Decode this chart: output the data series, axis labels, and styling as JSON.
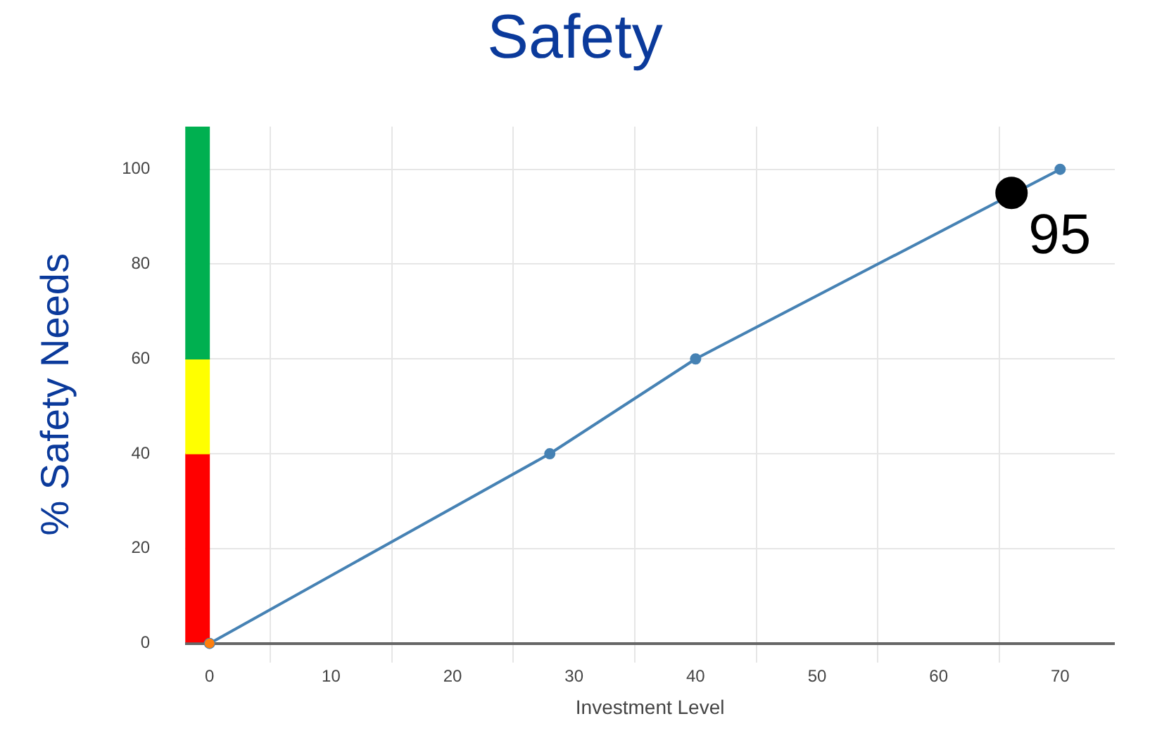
{
  "chart_data": {
    "type": "line",
    "title": "Safety",
    "xlabel": "Investment Level",
    "ylabel": "% Safety Needs",
    "xlim": [
      -2,
      74.5
    ],
    "xticks": [
      0,
      10,
      20,
      30,
      40,
      50,
      60,
      70
    ],
    "ylim": [
      -4,
      109
    ],
    "yticks": [
      0,
      20,
      40,
      60,
      80,
      100
    ],
    "grid": true,
    "legend": false,
    "marker": "circle",
    "series": [
      {
        "type": "bar",
        "color": "#ff0000",
        "x": [
          -1
        ],
        "base": [
          0
        ],
        "values": [
          40
        ]
      },
      {
        "type": "bar",
        "color": "#ffff00",
        "x": [
          -1
        ],
        "base": [
          40
        ],
        "values": [
          20
        ]
      },
      {
        "type": "bar",
        "color": "#00b050",
        "x": [
          -1
        ],
        "base": [
          60
        ],
        "values": [
          49
        ]
      },
      {
        "color": "#4682b4",
        "x": [
          0,
          28,
          40,
          70
        ],
        "values": [
          0,
          40,
          60,
          100
        ]
      },
      {
        "type": "scatter",
        "color": "#ff7f0e",
        "x": [
          0
        ],
        "values": [
          0
        ]
      },
      {
        "type": "scatter",
        "color": "#000000",
        "x": [
          66
        ],
        "values": [
          95
        ],
        "value_labels": [
          "95"
        ]
      }
    ]
  }
}
